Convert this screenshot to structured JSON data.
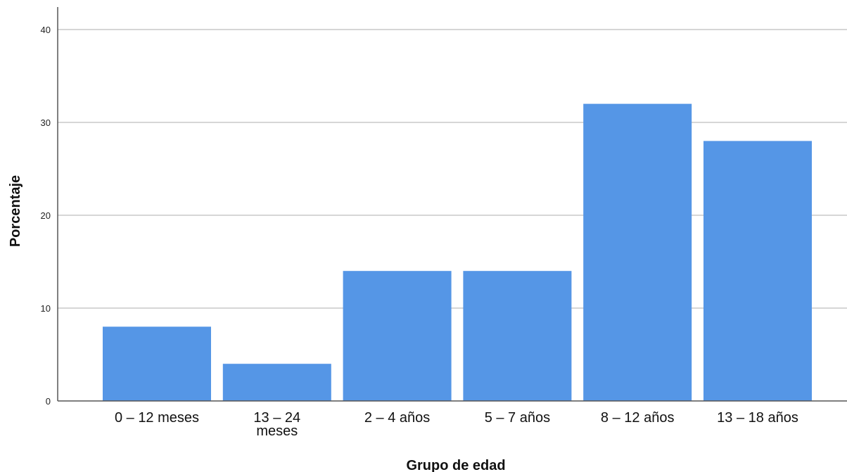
{
  "chart_data": {
    "type": "bar",
    "title": "",
    "xlabel": "Grupo de edad",
    "ylabel": "Porcentaje",
    "categories": [
      [
        "0 – 12 meses"
      ],
      [
        "13 – 24",
        "meses"
      ],
      [
        "2 – 4 años"
      ],
      [
        "5 – 7 años"
      ],
      [
        "8 – 12 años"
      ],
      [
        "13 – 18 años"
      ]
    ],
    "values": [
      8,
      4,
      14,
      14,
      32,
      28
    ],
    "ylim": [
      0,
      40
    ],
    "yticks": [
      0,
      10,
      20,
      30,
      40
    ],
    "grid": true,
    "legend": "none",
    "colors": {
      "bar": "#5596E6",
      "grid": "#C8C8C8",
      "axis": "#555555"
    }
  }
}
